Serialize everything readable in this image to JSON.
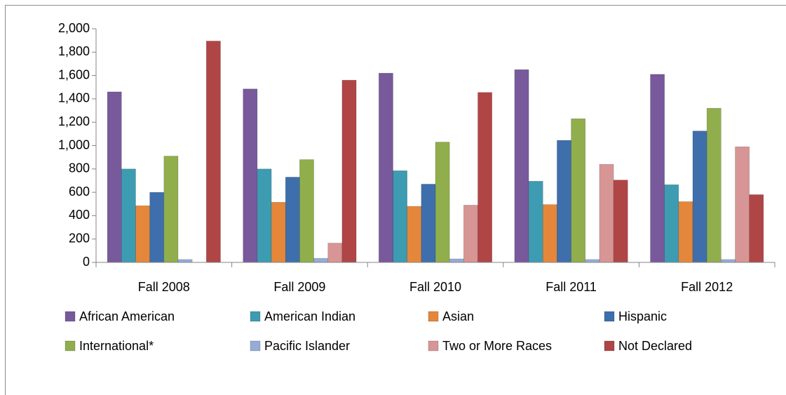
{
  "chart_data": {
    "type": "bar",
    "categories": [
      "Fall 2008",
      "Fall 2009",
      "Fall 2010",
      "Fall 2011",
      "Fall 2012"
    ],
    "series": [
      {
        "name": "African American",
        "color": "#77599c",
        "values": [
          1460,
          1485,
          1620,
          1650,
          1610
        ]
      },
      {
        "name": "American Indian",
        "color": "#3d9cb1",
        "values": [
          800,
          800,
          785,
          695,
          665
        ]
      },
      {
        "name": "Asian",
        "color": "#e5873b",
        "values": [
          485,
          515,
          480,
          495,
          520
        ]
      },
      {
        "name": "Hispanic",
        "color": "#3e6fac",
        "values": [
          600,
          730,
          670,
          1045,
          1125
        ]
      },
      {
        "name": "International*",
        "color": "#90ae4c",
        "values": [
          910,
          880,
          1030,
          1230,
          1320
        ]
      },
      {
        "name": "Pacific Islander",
        "color": "#95acd7",
        "values": [
          25,
          35,
          30,
          25,
          25
        ]
      },
      {
        "name": "Two or More Races",
        "color": "#d79595",
        "values": [
          0,
          165,
          490,
          840,
          990
        ]
      },
      {
        "name": "Not Declared",
        "color": "#b04546",
        "values": [
          1895,
          1560,
          1455,
          705,
          580
        ]
      }
    ],
    "ylim": [
      0,
      2000
    ],
    "yticks": [
      0,
      200,
      400,
      600,
      800,
      {
        "value": 1000,
        "label": "1,000"
      },
      {
        "value": 1200,
        "label": "1,200"
      },
      {
        "value": 1400,
        "label": "1,400"
      },
      {
        "value": 1600,
        "label": "1,600"
      },
      {
        "value": 1800,
        "label": "1,800"
      },
      {
        "value": 2000,
        "label": "2,000"
      }
    ],
    "grid": false,
    "legend": "bottom"
  }
}
